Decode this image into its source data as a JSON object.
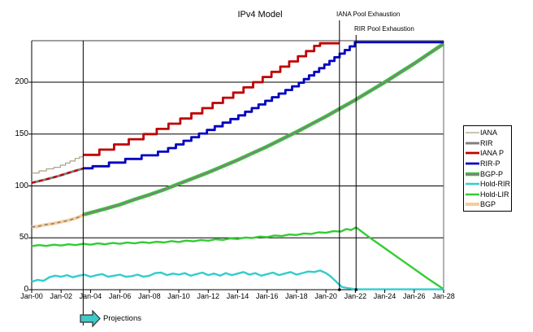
{
  "title": "IPv4 Model",
  "chart_data": {
    "type": "line",
    "title": "IPv4 Model",
    "x_axis": {
      "labels": [
        "Jan-00",
        "Jan-02",
        "Jan-04",
        "Jan-06",
        "Jan-08",
        "Jan-10",
        "Jan-12",
        "Jan-14",
        "Jan-16",
        "Jan-18",
        "Jan-20",
        "Jan-22",
        "Jan-24",
        "Jan-26",
        "Jan-28"
      ],
      "start_year": 2000,
      "end_year": 2028,
      "years_span": 28
    },
    "y_axis": {
      "ticks": [
        0,
        50,
        100,
        150,
        200
      ],
      "max": 240,
      "gridlines": [
        50,
        100,
        150,
        200
      ]
    },
    "events": [
      {
        "label": "IANA Pool Exhaustion",
        "t": 20.92
      },
      {
        "label": "RIR Pool Exhaustion",
        "t": 22.05
      },
      {
        "label": "Projections",
        "t": 3.5
      }
    ],
    "legend": [
      "IANA",
      "RIR",
      "IANA P",
      "RIR-P",
      "BGP-P",
      "Hold-RIR",
      "Hold-LIR",
      "BGP"
    ],
    "series": [
      {
        "name": "Hold-LIR",
        "color": "#33cc33",
        "width": 2.4,
        "points": [
          [
            0,
            42
          ],
          [
            0.5,
            43
          ],
          [
            1,
            42.2
          ],
          [
            1.5,
            43.4
          ],
          [
            2,
            42.6
          ],
          [
            2.5,
            43.8
          ],
          [
            3,
            43
          ],
          [
            3.5,
            44.2
          ],
          [
            4,
            43.4
          ],
          [
            4.5,
            44.6
          ],
          [
            5,
            43.8
          ],
          [
            5.5,
            45
          ],
          [
            6,
            44.2
          ],
          [
            6.5,
            45.4
          ],
          [
            7,
            44.6
          ],
          [
            7.5,
            45.8
          ],
          [
            8,
            45
          ],
          [
            8.5,
            46.2
          ],
          [
            9,
            45.5
          ],
          [
            9.5,
            46.8
          ],
          [
            10,
            46
          ],
          [
            10.5,
            47.3
          ],
          [
            11,
            46.6
          ],
          [
            11.5,
            47.9
          ],
          [
            12,
            47.2
          ],
          [
            12.5,
            48.6
          ],
          [
            13,
            48
          ],
          [
            13.5,
            49.4
          ],
          [
            14,
            48.9
          ],
          [
            14.5,
            50.3
          ],
          [
            15,
            49.8
          ],
          [
            15.5,
            51.2
          ],
          [
            16,
            50.7
          ],
          [
            16.5,
            52.2
          ],
          [
            17,
            51.7
          ],
          [
            17.5,
            53.2
          ],
          [
            18,
            52.7
          ],
          [
            18.5,
            54.2
          ],
          [
            19,
            53.7
          ],
          [
            19.5,
            55.3
          ],
          [
            20,
            54.8
          ],
          [
            20.5,
            56.4
          ],
          [
            21,
            56
          ],
          [
            21.4,
            58.5
          ],
          [
            21.7,
            57.5
          ],
          [
            22.05,
            60
          ],
          [
            23,
            50
          ],
          [
            24,
            40
          ],
          [
            25,
            30
          ],
          [
            26,
            20
          ],
          [
            27,
            10
          ],
          [
            28,
            0.5
          ]
        ]
      },
      {
        "name": "Hold-RIR",
        "color": "#33cccc",
        "width": 2.4,
        "points": [
          [
            0,
            7.5
          ],
          [
            0.4,
            9.5
          ],
          [
            0.8,
            8.5
          ],
          [
            1.2,
            12
          ],
          [
            1.6,
            13.5
          ],
          [
            2,
            12.5
          ],
          [
            2.4,
            14
          ],
          [
            2.8,
            12
          ],
          [
            3.2,
            13.5
          ],
          [
            3.6,
            14.5
          ],
          [
            4,
            12.5
          ],
          [
            4.4,
            14
          ],
          [
            4.8,
            15
          ],
          [
            5.2,
            12.5
          ],
          [
            5.6,
            13.5
          ],
          [
            6,
            14.5
          ],
          [
            6.4,
            12.5
          ],
          [
            6.8,
            13
          ],
          [
            7.2,
            14.5
          ],
          [
            7.6,
            12.5
          ],
          [
            8,
            13.5
          ],
          [
            8.4,
            16
          ],
          [
            8.8,
            16.5
          ],
          [
            9.2,
            14
          ],
          [
            9.6,
            15.5
          ],
          [
            10,
            14.5
          ],
          [
            10.4,
            16
          ],
          [
            10.8,
            13.5
          ],
          [
            11.2,
            15
          ],
          [
            11.6,
            16.5
          ],
          [
            12,
            14
          ],
          [
            12.4,
            15.5
          ],
          [
            12.8,
            13.5
          ],
          [
            13.2,
            16
          ],
          [
            13.6,
            14
          ],
          [
            14,
            15.5
          ],
          [
            14.4,
            17
          ],
          [
            14.8,
            14.5
          ],
          [
            15.2,
            16
          ],
          [
            15.6,
            13.5
          ],
          [
            16,
            15
          ],
          [
            16.4,
            16.5
          ],
          [
            16.8,
            14
          ],
          [
            17.2,
            15.5
          ],
          [
            17.6,
            17
          ],
          [
            18,
            14.5
          ],
          [
            18.4,
            16
          ],
          [
            18.8,
            17.5
          ],
          [
            19.2,
            17
          ],
          [
            19.6,
            18.5
          ],
          [
            20,
            16
          ],
          [
            20.3,
            13
          ],
          [
            20.6,
            9
          ],
          [
            20.9,
            5
          ],
          [
            21.1,
            2.5
          ],
          [
            21.5,
            1.5
          ],
          [
            22.05,
            0.3
          ],
          [
            28,
            0.3
          ]
        ]
      },
      {
        "name": "BGP",
        "color": "#f8cc98",
        "width": 4,
        "points": [
          [
            0,
            60.5
          ],
          [
            0.4,
            61
          ],
          [
            0.9,
            62.5
          ],
          [
            1.4,
            63.5
          ],
          [
            1.9,
            65
          ],
          [
            2.4,
            66.5
          ],
          [
            2.9,
            68.5
          ],
          [
            3.2,
            70
          ],
          [
            3.55,
            72.5
          ]
        ]
      },
      {
        "name": "BGP-history-model-overlay",
        "color": "#808080",
        "width": 1.5,
        "dash": "4 4",
        "legend_hidden": true,
        "points": [
          [
            0,
            60.5
          ],
          [
            0.4,
            61
          ],
          [
            0.9,
            62.5
          ],
          [
            1.4,
            63.5
          ],
          [
            1.9,
            65
          ],
          [
            2.4,
            66.5
          ],
          [
            2.9,
            68.5
          ],
          [
            3.2,
            70
          ],
          [
            3.55,
            72.5
          ]
        ]
      },
      {
        "name": "BGP-P",
        "color": "#808080",
        "width": 2,
        "outline": "#33cc33",
        "outline_width": 4.6,
        "points": [
          [
            3.55,
            72.5
          ],
          [
            5,
            78
          ],
          [
            6,
            82
          ],
          [
            7,
            87
          ],
          [
            8,
            91.5
          ],
          [
            9,
            96.5
          ],
          [
            10,
            102
          ],
          [
            11,
            107.5
          ],
          [
            12,
            113
          ],
          [
            13,
            119
          ],
          [
            14,
            125
          ],
          [
            15,
            131.5
          ],
          [
            16,
            138
          ],
          [
            17,
            145
          ],
          [
            18,
            152
          ],
          [
            19,
            159.5
          ],
          [
            20,
            167
          ],
          [
            21,
            175
          ],
          [
            22,
            183
          ],
          [
            23,
            191.5
          ],
          [
            24,
            200
          ],
          [
            25,
            209
          ],
          [
            26,
            218
          ],
          [
            27,
            227.5
          ],
          [
            28,
            237
          ]
        ]
      },
      {
        "name": "RIR",
        "color": "#808080",
        "width": 3,
        "points": [
          [
            0,
            103
          ],
          [
            0.9,
            106
          ],
          [
            1.8,
            109.5
          ],
          [
            2.7,
            113.5
          ],
          [
            3.55,
            117
          ]
        ]
      },
      {
        "name": "RIR-history-model-overlay",
        "color": "#c00000",
        "width": 2.2,
        "dash": "5 4",
        "legend_hidden": true,
        "points": [
          [
            0,
            103
          ],
          [
            0.9,
            106
          ],
          [
            1.8,
            109.5
          ],
          [
            2.7,
            113.5
          ],
          [
            3.55,
            117
          ]
        ]
      },
      {
        "name": "IANA",
        "color": "#aba184",
        "width": 1.2,
        "step": true,
        "points": [
          [
            0,
            112.5
          ],
          [
            0.5,
            114.5
          ],
          [
            1,
            116.5
          ],
          [
            1.5,
            118
          ],
          [
            1.95,
            120
          ],
          [
            2.3,
            122
          ],
          [
            2.6,
            124
          ],
          [
            2.95,
            126.5
          ],
          [
            3.25,
            128
          ],
          [
            3.5,
            130
          ],
          [
            3.62,
            130
          ]
        ]
      },
      {
        "name": "IANA P",
        "color": "#c00000",
        "width": 2.8,
        "step": true,
        "points": [
          [
            3.5,
            130
          ],
          [
            4.6,
            135
          ],
          [
            5.6,
            140
          ],
          [
            6.6,
            145
          ],
          [
            7.6,
            150
          ],
          [
            8.5,
            155
          ],
          [
            9.3,
            160
          ],
          [
            10.1,
            165
          ],
          [
            10.85,
            170
          ],
          [
            11.6,
            175
          ],
          [
            12.3,
            180
          ],
          [
            13,
            185
          ],
          [
            13.7,
            190
          ],
          [
            14.4,
            195
          ],
          [
            15.05,
            200
          ],
          [
            15.7,
            205
          ],
          [
            16.3,
            210
          ],
          [
            16.9,
            215
          ],
          [
            17.5,
            220
          ],
          [
            18.1,
            225
          ],
          [
            18.65,
            230
          ],
          [
            19.2,
            235
          ],
          [
            19.6,
            237.5
          ],
          [
            20.92,
            237.5
          ]
        ]
      },
      {
        "name": "RIR-P",
        "color": "#0000c0",
        "width": 2.8,
        "step": true,
        "points": [
          [
            3.5,
            117
          ],
          [
            4.14,
            119
          ],
          [
            5.25,
            122.5
          ],
          [
            6.36,
            126
          ],
          [
            7.47,
            129.5
          ],
          [
            8.58,
            133
          ],
          [
            9.27,
            136.5
          ],
          [
            9.8,
            140
          ],
          [
            10.32,
            143.5
          ],
          [
            10.85,
            147
          ],
          [
            11.37,
            150.5
          ],
          [
            11.91,
            154
          ],
          [
            12.44,
            157.5
          ],
          [
            12.98,
            161
          ],
          [
            13.51,
            164.5
          ],
          [
            14.05,
            168
          ],
          [
            14.51,
            171.5
          ],
          [
            14.96,
            175
          ],
          [
            15.42,
            178.5
          ],
          [
            15.88,
            182
          ],
          [
            16.33,
            185.5
          ],
          [
            16.79,
            189
          ],
          [
            17.25,
            192.5
          ],
          [
            17.7,
            196
          ],
          [
            18.16,
            199.5
          ],
          [
            18.5,
            203
          ],
          [
            18.85,
            206.5
          ],
          [
            19.2,
            210
          ],
          [
            19.54,
            213.5
          ],
          [
            19.89,
            217
          ],
          [
            20.24,
            220.5
          ],
          [
            20.58,
            224
          ],
          [
            20.93,
            227.5
          ],
          [
            21.28,
            231
          ],
          [
            21.62,
            234.5
          ],
          [
            21.97,
            238.5
          ],
          [
            28,
            238.5
          ]
        ]
      }
    ],
    "colors": {
      "grid": "#000000",
      "axis": "#000000",
      "plot_top_border": "#808080",
      "plot_right_border": "#666666",
      "event_line": "#000000",
      "projection_arrow_fill": "#3fc8c8",
      "projection_arrow_outline": "#303030"
    }
  }
}
